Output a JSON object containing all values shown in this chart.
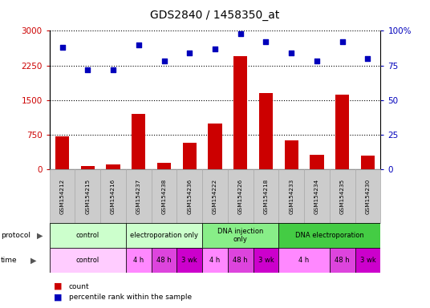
{
  "title": "GDS2840 / 1458350_at",
  "samples": [
    "GSM154212",
    "GSM154215",
    "GSM154216",
    "GSM154237",
    "GSM154238",
    "GSM154236",
    "GSM154222",
    "GSM154226",
    "GSM154218",
    "GSM154233",
    "GSM154234",
    "GSM154235",
    "GSM154230"
  ],
  "counts": [
    720,
    80,
    100,
    1200,
    150,
    580,
    1000,
    2450,
    1650,
    620,
    320,
    1620,
    290
  ],
  "percentile": [
    88,
    72,
    72,
    90,
    78,
    84,
    87,
    98,
    92,
    84,
    78,
    92,
    80
  ],
  "ylim_left": [
    0,
    3000
  ],
  "ylim_right": [
    0,
    100
  ],
  "yticks_left": [
    0,
    750,
    1500,
    2250,
    3000
  ],
  "yticks_right": [
    0,
    25,
    50,
    75,
    100
  ],
  "ytick_right_labels": [
    "0",
    "25",
    "50",
    "75",
    "100%"
  ],
  "bar_color": "#cc0000",
  "scatter_color": "#0000bb",
  "protocol_groups": [
    {
      "label": "control",
      "start": 0,
      "end": 3
    },
    {
      "label": "electroporation only",
      "start": 3,
      "end": 6
    },
    {
      "label": "DNA injection\nonly",
      "start": 6,
      "end": 9
    },
    {
      "label": "DNA electroporation",
      "start": 9,
      "end": 13
    }
  ],
  "proto_colors": [
    "#ccffcc",
    "#ccffcc",
    "#88ee88",
    "#44cc44"
  ],
  "time_groups": [
    {
      "label": "control",
      "start": 0,
      "end": 3
    },
    {
      "label": "4 h",
      "start": 3,
      "end": 4
    },
    {
      "label": "48 h",
      "start": 4,
      "end": 5
    },
    {
      "label": "3 wk",
      "start": 5,
      "end": 6
    },
    {
      "label": "4 h",
      "start": 6,
      "end": 7
    },
    {
      "label": "48 h",
      "start": 7,
      "end": 8
    },
    {
      "label": "3 wk",
      "start": 8,
      "end": 9
    },
    {
      "label": "4 h",
      "start": 9,
      "end": 11
    },
    {
      "label": "48 h",
      "start": 11,
      "end": 12
    },
    {
      "label": "3 wk",
      "start": 12,
      "end": 13
    }
  ],
  "time_colors": [
    "#ffccff",
    "#ff88ff",
    "#dd44dd",
    "#cc00cc",
    "#ff88ff",
    "#dd44dd",
    "#cc00cc",
    "#ff88ff",
    "#dd44dd",
    "#cc00cc"
  ],
  "bg_color": "#ffffff",
  "grid_color": "#000000",
  "tick_label_color_left": "#cc0000",
  "tick_label_color_right": "#0000bb",
  "sample_box_color": "#cccccc",
  "sample_box_edge": "#aaaaaa"
}
